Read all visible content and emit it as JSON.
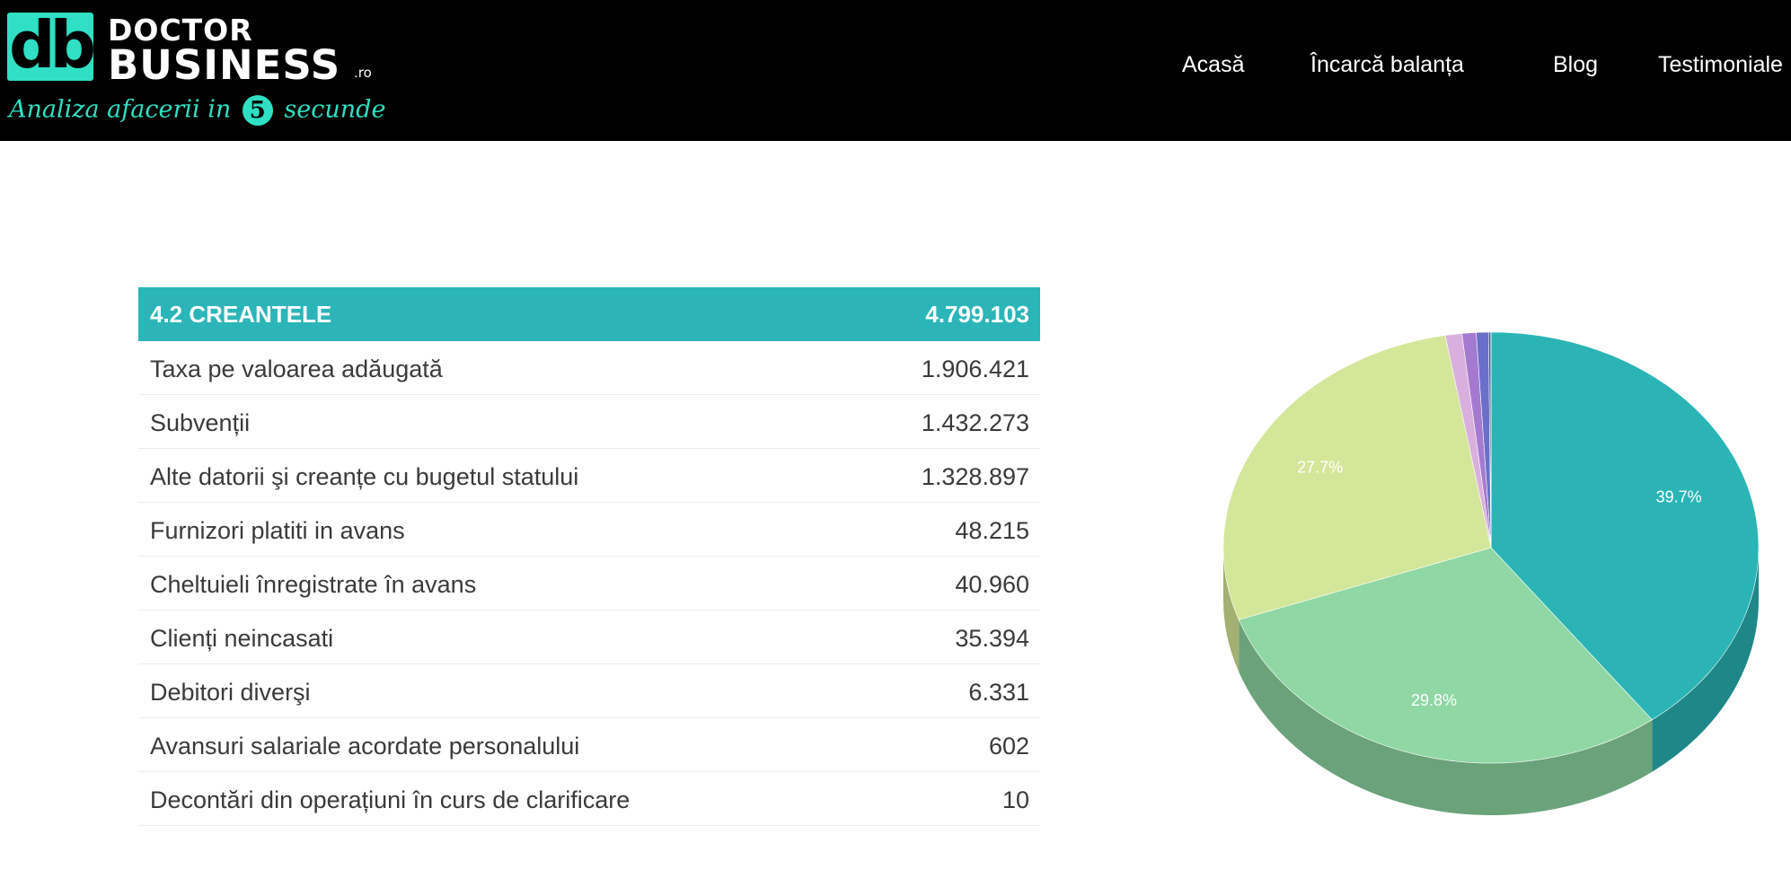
{
  "header": {
    "logo_mark": "db",
    "brand_line1": "DOCTOR",
    "brand_line2": "BUSINESS",
    "brand_suffix": ".ro",
    "tagline_before": "Analiza afacerii in",
    "tagline_number": "5",
    "tagline_after": "secunde",
    "nav": [
      "Acasă",
      "Încarcă balanța",
      "Blog",
      "Testimoniale"
    ]
  },
  "table": {
    "title": "4.2 CREANTELE",
    "total": "4.799.103",
    "rows": [
      {
        "label": "Taxa pe valoarea adăugată",
        "value": "1.906.421"
      },
      {
        "label": "Subvenții",
        "value": "1.432.273"
      },
      {
        "label": "Alte datorii şi creanțe cu bugetul statului",
        "value": "1.328.897"
      },
      {
        "label": "Furnizori platiti in avans",
        "value": "48.215"
      },
      {
        "label": "Cheltuieli înregistrate în avans",
        "value": "40.960"
      },
      {
        "label": "Clienți neincasati",
        "value": "35.394"
      },
      {
        "label": "Debitori diverşi",
        "value": "6.331"
      },
      {
        "label": "Avansuri salariale acordate personalului",
        "value": "602"
      },
      {
        "label": "Decontări din operațiuni în curs de clarificare",
        "value": "10"
      }
    ]
  },
  "colors": {
    "accent": "#2bb5b8",
    "header_bg": "#000000",
    "logo": "#2fe0c4"
  },
  "chart_data": {
    "type": "pie",
    "categories": [
      "Taxa pe valoarea adăugată",
      "Subvenții",
      "Alte datorii şi creanțe cu bugetul statului",
      "Furnizori platiti in avans",
      "Cheltuieli înregistrate în avans",
      "Clienți neincasati",
      "Debitori diverşi",
      "Avansuri salariale acordate personalului",
      "Decontări din operațiuni în curs de clarificare"
    ],
    "values": [
      1906421,
      1432273,
      1328897,
      48215,
      40960,
      35394,
      6331,
      602,
      10
    ],
    "data_labels": [
      "39.7%",
      "29.8%",
      "27.7%",
      "",
      "",
      "",
      "",
      "",
      ""
    ],
    "colors": [
      "#2ab4b5",
      "#8fd7a4",
      "#d4e699",
      "#d9b0dd",
      "#a47ad0",
      "#6a6fc8",
      "#3f5d8f",
      "#555555",
      "#444444"
    ],
    "side_colors": [
      "#1f8788",
      "#6aa27a",
      "#a2b071",
      "#a585a8",
      "#7b5c9c",
      "#4f5396",
      "#2f466b",
      "#404040",
      "#333333"
    ],
    "style": "3d"
  }
}
